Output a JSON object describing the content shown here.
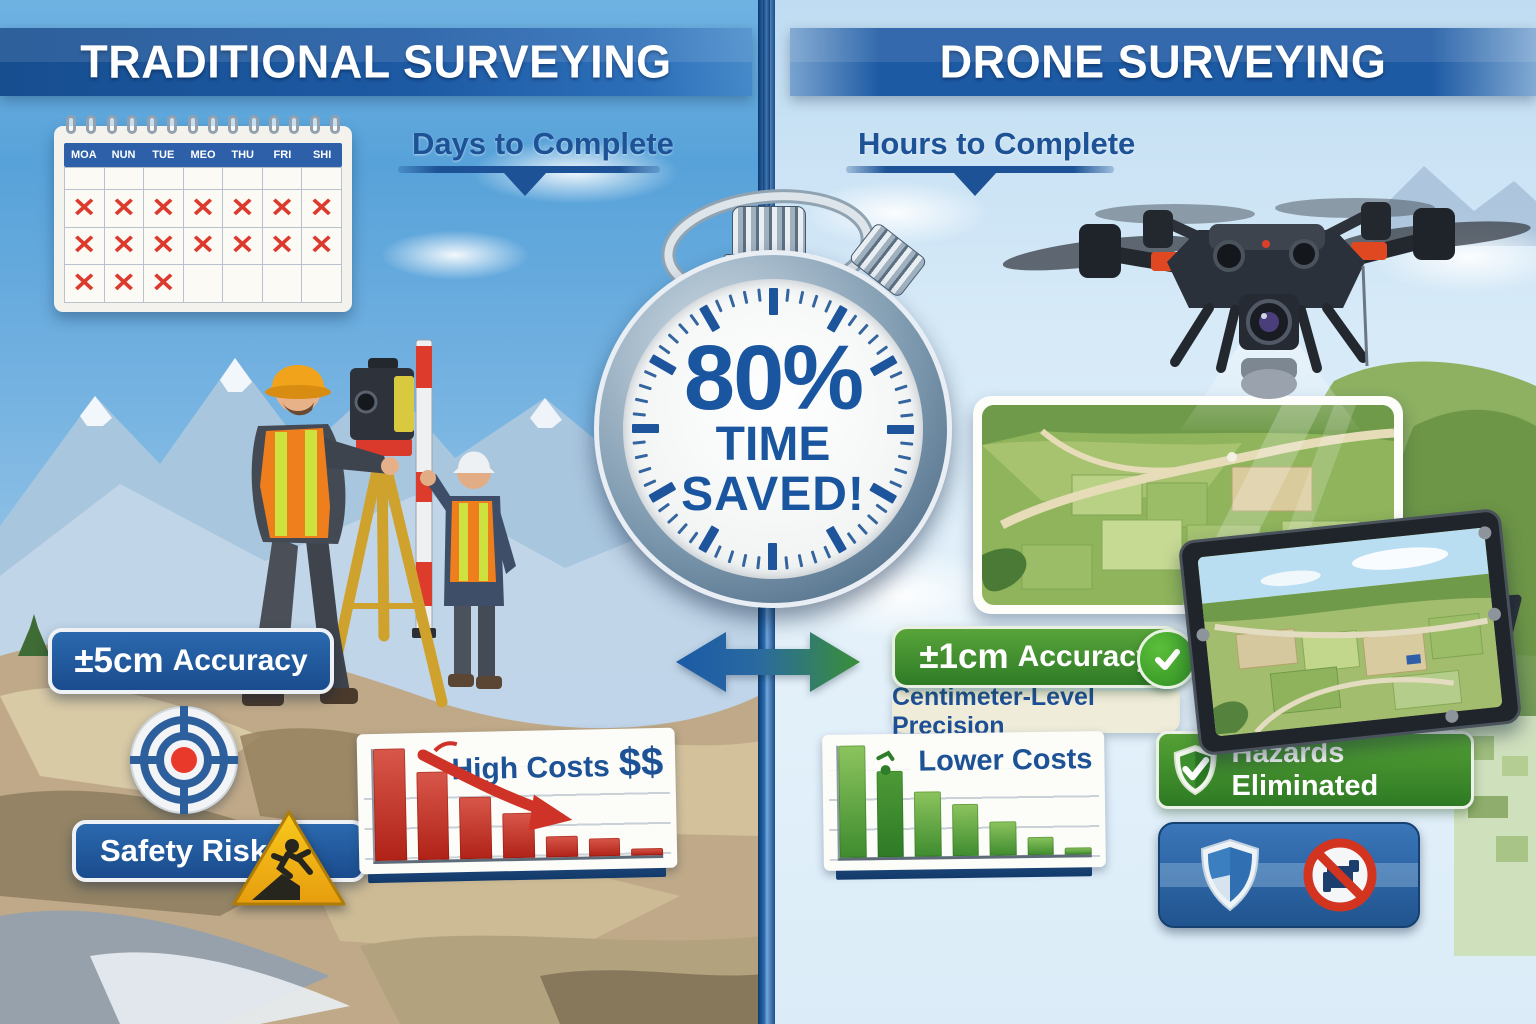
{
  "left": {
    "header": "TRADITIONAL SURVEYING",
    "time_label": "Days to Complete",
    "calendar": {
      "day_headers": [
        "MOA",
        "NUN",
        "TUE",
        "MEO",
        "THU",
        "FRI",
        "SHI"
      ],
      "x_mark": "✕",
      "x_rows": [
        [
          0,
          0,
          0,
          0,
          0,
          0,
          0
        ],
        [
          1,
          1,
          1,
          1,
          1,
          1,
          1
        ],
        [
          1,
          1,
          1,
          1,
          1,
          1,
          1
        ],
        [
          1,
          1,
          1,
          0,
          0,
          0,
          0
        ]
      ]
    },
    "accuracy_badge": {
      "value": "±5cm",
      "label": "Accuracy"
    },
    "safety_badge": "Safety Risks"
  },
  "right": {
    "header": "DRONE SURVEYING",
    "time_label": "Hours to Complete",
    "accuracy_badge": {
      "value": "±1cm",
      "label": "Accuracy"
    },
    "precision_label": "Centimeter-Level Precision",
    "hazards_badge": "Hazards Eliminated"
  },
  "center": {
    "stopwatch": {
      "value": "80%",
      "line2": "TIME",
      "line3": "SAVED!"
    }
  },
  "chart_data": [
    {
      "type": "bar",
      "title": "High Costs",
      "suffix": "$$",
      "values": [
        100,
        79,
        55,
        40,
        19,
        16,
        6
      ],
      "bar_color": "#c23222",
      "trend": "declining",
      "annotation": "red downward arrow"
    },
    {
      "type": "bar",
      "title": "Lower Costs",
      "values": [
        100,
        77,
        58,
        46,
        30,
        16,
        6
      ],
      "bar_color": "#4e9b35",
      "trend": "declining"
    }
  ],
  "colors": {
    "banner_blue": "#1d5aa4",
    "text_blue": "#1d5296",
    "badge_green": "#3e8f2e",
    "warning_yellow": "#f3bb16",
    "x_red": "#dd3a2e",
    "cream": "#efecd9"
  }
}
